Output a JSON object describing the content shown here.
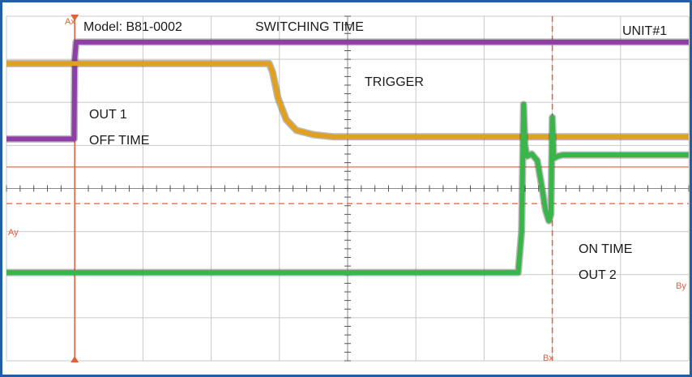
{
  "chart_data": {
    "type": "line",
    "title": "SWITCHING TIME",
    "model": "Model: B81-0002",
    "unit": "UNIT#1",
    "annotations": {
      "trigger": "TRIGGER",
      "out1": "OUT 1",
      "off_time": "OFF TIME",
      "on_time": "ON TIME",
      "out2": "OUT 2"
    },
    "cursors": {
      "ax_label": "Ax",
      "bx_label": "Bx",
      "ay_label": "Ay",
      "by_label": "By",
      "ax_div": 1.0,
      "bx_div": 8.0,
      "ay_div": 3.5,
      "by_div": 4.35
    },
    "grid": true,
    "divisions": {
      "x": 10,
      "y": 8
    },
    "xlim": [
      0,
      10
    ],
    "ylim": [
      8,
      0
    ],
    "colors": {
      "trigger": "#8e3fa6",
      "out1": "#e0a020",
      "out2": "#39b54a",
      "cursor": "#e0603a",
      "grid": "#c9c9c9",
      "frame_border": "#1f5fa8"
    },
    "series": [
      {
        "key": "trigger",
        "points": [
          [
            0,
            2.85
          ],
          [
            0.99,
            2.85
          ],
          [
            1.0,
            1.0
          ],
          [
            1.02,
            0.6
          ],
          [
            10,
            0.6
          ]
        ]
      },
      {
        "key": "out1",
        "points": [
          [
            0,
            1.1
          ],
          [
            3.85,
            1.1
          ],
          [
            3.9,
            1.3
          ],
          [
            3.98,
            1.9
          ],
          [
            4.1,
            2.4
          ],
          [
            4.25,
            2.65
          ],
          [
            4.5,
            2.75
          ],
          [
            4.8,
            2.8
          ],
          [
            10,
            2.8
          ]
        ]
      },
      {
        "key": "out2",
        "points": [
          [
            0,
            5.95
          ],
          [
            7.5,
            5.95
          ],
          [
            7.55,
            5.0
          ],
          [
            7.58,
            2.05
          ],
          [
            7.6,
            3.0
          ],
          [
            7.63,
            3.25
          ],
          [
            7.7,
            3.2
          ],
          [
            7.78,
            3.35
          ],
          [
            7.85,
            4.0
          ],
          [
            7.9,
            4.5
          ],
          [
            7.95,
            4.75
          ],
          [
            7.98,
            4.6
          ],
          [
            8.0,
            2.35
          ],
          [
            8.02,
            3.3
          ],
          [
            8.08,
            3.25
          ],
          [
            8.15,
            3.22
          ],
          [
            10,
            3.22
          ]
        ]
      }
    ]
  }
}
